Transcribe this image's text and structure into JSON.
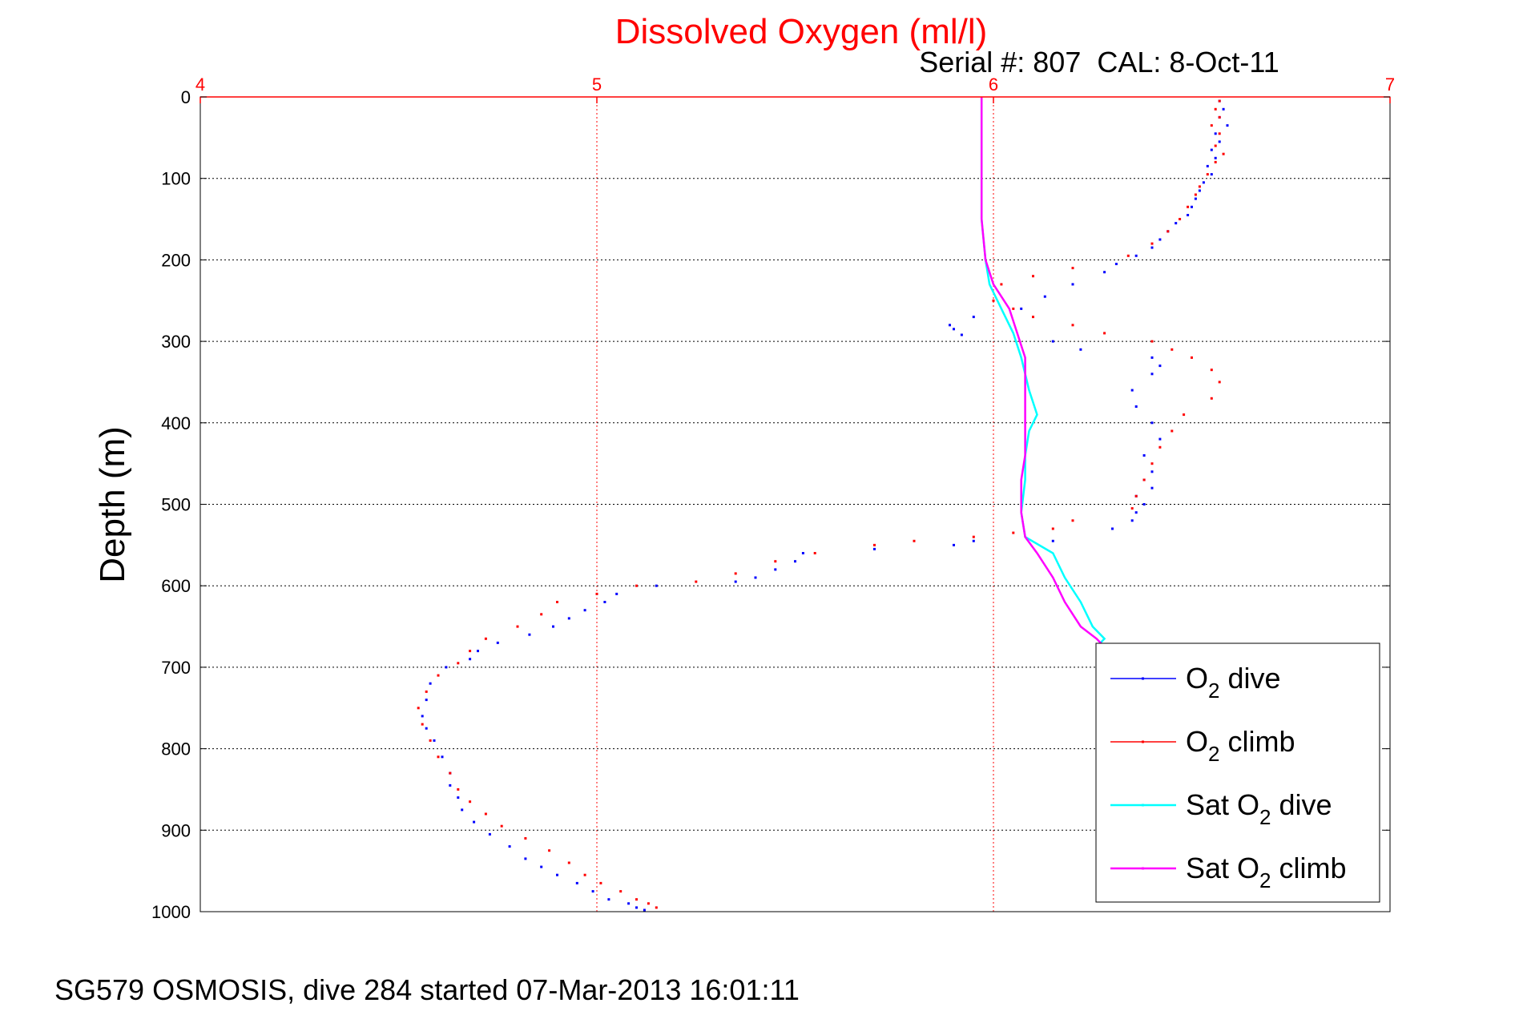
{
  "chart_data": {
    "type": "scatter",
    "title": "Dissolved Oxygen (ml/l)",
    "subtitle": "Serial #: 807  CAL: 8-Oct-11",
    "ylabel": "Depth (m)",
    "footer": "SG579 OSMOSIS, dive 284 started 07-Mar-2013 16:01:11",
    "xlim": [
      4,
      7
    ],
    "ylim": [
      0,
      1000
    ],
    "y_reversed": true,
    "x_axis_position": "top",
    "x_ticks": [
      4,
      5,
      6,
      7
    ],
    "y_ticks": [
      0,
      100,
      200,
      300,
      400,
      500,
      600,
      700,
      800,
      900,
      1000
    ],
    "grid": true,
    "legend_position": "bottom-right",
    "colors": {
      "o2_dive": "#0000ff",
      "o2_climb": "#ff0000",
      "sat_dive": "#00ffff",
      "sat_climb": "#ff00ff",
      "x_axis": "#ff0000",
      "grid_x": "#ff0000",
      "grid_y": "#000000"
    },
    "series": [
      {
        "name": "O2 dive",
        "label_main": "O",
        "label_sub": "2",
        "label_rest": " dive",
        "mode": "markers",
        "color": "#0000ff",
        "x": [
          6.57,
          6.58,
          6.57,
          6.59,
          6.56,
          6.57,
          6.55,
          6.56,
          6.54,
          6.55,
          6.53,
          6.52,
          6.51,
          6.5,
          6.49,
          6.46,
          6.44,
          6.42,
          6.4,
          6.36,
          6.31,
          6.28,
          6.2,
          6.13,
          6.07,
          5.95,
          5.89,
          5.9,
          5.92,
          6.15,
          6.22,
          6.4,
          6.42,
          6.4,
          6.35,
          6.36,
          6.4,
          6.42,
          6.38,
          6.4,
          6.38,
          6.4,
          6.36,
          6.38,
          6.36,
          6.35,
          6.3,
          6.15,
          5.95,
          5.9,
          5.7,
          5.52,
          5.5,
          5.45,
          5.4,
          5.35,
          5.15,
          5.05,
          5.02,
          4.97,
          4.93,
          4.89,
          4.83,
          4.75,
          4.7,
          4.68,
          4.62,
          4.58,
          4.57,
          4.56,
          4.57,
          4.59,
          4.61,
          4.63,
          4.63,
          4.65,
          4.66,
          4.69,
          4.73,
          4.78,
          4.82,
          4.86,
          4.9,
          4.95,
          4.99,
          5.03,
          5.08,
          5.1,
          5.12
        ],
        "y": [
          5,
          15,
          25,
          35,
          45,
          55,
          65,
          75,
          85,
          95,
          105,
          115,
          125,
          135,
          145,
          155,
          165,
          175,
          185,
          195,
          205,
          215,
          230,
          245,
          260,
          270,
          280,
          285,
          292,
          300,
          310,
          320,
          330,
          340,
          360,
          380,
          400,
          420,
          440,
          460,
          470,
          480,
          490,
          500,
          510,
          520,
          530,
          545,
          545,
          550,
          555,
          560,
          570,
          580,
          590,
          595,
          600,
          610,
          620,
          630,
          640,
          650,
          660,
          670,
          680,
          690,
          700,
          720,
          740,
          760,
          775,
          790,
          810,
          830,
          845,
          860,
          875,
          890,
          905,
          920,
          935,
          945,
          955,
          965,
          975,
          985,
          990,
          995,
          998
        ]
      },
      {
        "name": "O2 climb",
        "label_main": "O",
        "label_sub": "2",
        "label_rest": " climb",
        "mode": "markers",
        "color": "#ff0000",
        "x": [
          6.57,
          6.56,
          6.57,
          6.55,
          6.57,
          6.56,
          6.58,
          6.56,
          6.54,
          6.52,
          6.51,
          6.49,
          6.47,
          6.44,
          6.4,
          6.34,
          6.2,
          6.1,
          6.02,
          6.0,
          6.05,
          6.1,
          6.2,
          6.28,
          6.4,
          6.45,
          6.5,
          6.55,
          6.57,
          6.55,
          6.48,
          6.45,
          6.42,
          6.4,
          6.38,
          6.36,
          6.35,
          6.2,
          6.15,
          6.05,
          5.95,
          5.8,
          5.7,
          5.55,
          5.45,
          5.35,
          5.25,
          5.1,
          5.0,
          4.9,
          4.86,
          4.8,
          4.72,
          4.68,
          4.65,
          4.6,
          4.57,
          4.55,
          4.56,
          4.58,
          4.6,
          4.63,
          4.65,
          4.68,
          4.72,
          4.76,
          4.82,
          4.88,
          4.93,
          4.97,
          5.01,
          5.06,
          5.1,
          5.13,
          5.15
        ],
        "y": [
          5,
          15,
          25,
          35,
          45,
          60,
          70,
          80,
          95,
          110,
          120,
          135,
          150,
          165,
          180,
          195,
          210,
          220,
          230,
          250,
          260,
          270,
          280,
          290,
          300,
          310,
          320,
          335,
          350,
          370,
          390,
          410,
          430,
          450,
          470,
          490,
          505,
          520,
          530,
          535,
          540,
          545,
          550,
          560,
          570,
          585,
          595,
          600,
          610,
          620,
          635,
          650,
          665,
          680,
          695,
          710,
          730,
          750,
          770,
          790,
          810,
          830,
          850,
          865,
          880,
          895,
          910,
          925,
          940,
          955,
          965,
          975,
          985,
          990,
          995
        ]
      },
      {
        "name": "Sat O2 dive",
        "label_main": "Sat O",
        "label_sub": "2",
        "label_rest": " dive",
        "mode": "line",
        "color": "#00ffff",
        "x": [
          5.97,
          5.97,
          5.97,
          5.97,
          5.98,
          5.99,
          6.02,
          6.05,
          6.07,
          6.09,
          6.11,
          6.09,
          6.08,
          6.08,
          6.07,
          6.08,
          6.15,
          6.18,
          6.22,
          6.25,
          6.28,
          6.26
        ],
        "y": [
          0,
          50,
          100,
          150,
          200,
          230,
          260,
          290,
          320,
          360,
          390,
          410,
          440,
          470,
          510,
          540,
          560,
          590,
          620,
          650,
          665,
          675
        ]
      },
      {
        "name": "Sat O2 climb",
        "label_main": "Sat O",
        "label_sub": "2",
        "label_rest": " climb",
        "mode": "line",
        "color": "#ff00ff",
        "x": [
          5.97,
          5.97,
          5.97,
          5.97,
          5.98,
          6.0,
          6.04,
          6.06,
          6.08,
          6.08,
          6.08,
          6.08,
          6.08,
          6.07,
          6.07,
          6.08,
          6.11,
          6.15,
          6.18,
          6.22,
          6.26,
          6.28
        ],
        "y": [
          0,
          50,
          100,
          150,
          200,
          230,
          260,
          290,
          320,
          360,
          390,
          410,
          440,
          470,
          510,
          540,
          560,
          590,
          620,
          650,
          665,
          675
        ]
      }
    ]
  }
}
